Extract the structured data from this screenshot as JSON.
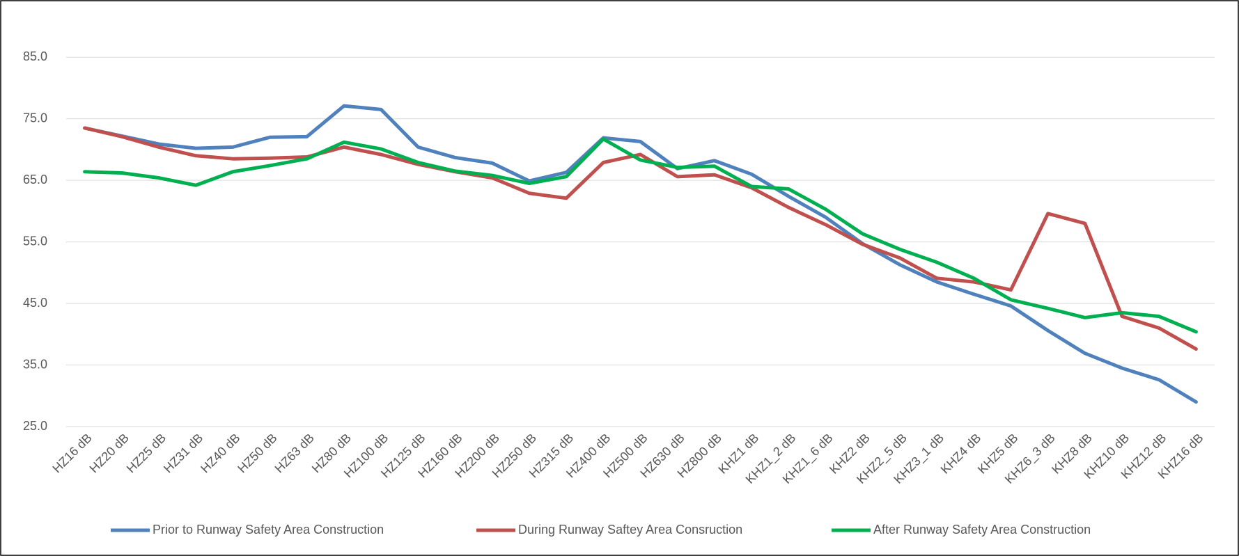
{
  "chart_data": {
    "type": "line",
    "categories": [
      "HZ16 dB",
      "HZ20 dB",
      "HZ25 dB",
      "HZ31 dB",
      "HZ40 dB",
      "HZ50 dB",
      "HZ63 dB",
      "HZ80 dB",
      "HZ100 dB",
      "HZ125 dB",
      "HZ160 dB",
      "HZ200 dB",
      "HZ250 dB",
      "HZ315 dB",
      "HZ400 dB",
      "HZ500 dB",
      "HZ630 dB",
      "HZ800 dB",
      "KHZ1 dB",
      "KHZ1_2 dB",
      "KHZ1_6 dB",
      "KHZ2 dB",
      "KHZ2_5 dB",
      "KHZ3_1 dB",
      "KHZ4 dB",
      "KHZ5 dB",
      "KHZ6_3 dB",
      "KHZ8 dB",
      "KHZ10 dB",
      "KHZ12 dB",
      "KHZ16 dB"
    ],
    "series": [
      {
        "name": "Prior to Runway Safety Area Construction",
        "color": "#4f81bd",
        "values": [
          73.5,
          72.2,
          70.9,
          70.2,
          70.4,
          72.0,
          72.1,
          77.1,
          76.5,
          70.4,
          68.7,
          67.8,
          64.9,
          66.3,
          71.9,
          71.3,
          66.9,
          68.2,
          66.0,
          62.4,
          59.0,
          54.7,
          51.3,
          48.5,
          46.5,
          44.6,
          40.6,
          36.9,
          34.5,
          32.6,
          29.0
        ]
      },
      {
        "name": "During Runway Saftey Area Consruction",
        "color": "#c0504d",
        "values": [
          73.5,
          72.1,
          70.4,
          69.0,
          68.5,
          68.6,
          68.8,
          70.4,
          69.2,
          67.6,
          66.4,
          65.4,
          62.9,
          62.1,
          67.9,
          69.2,
          65.6,
          65.9,
          63.8,
          60.6,
          57.8,
          54.6,
          52.4,
          49.1,
          48.5,
          47.2,
          59.6,
          58.0,
          42.9,
          41.0,
          37.6
        ]
      },
      {
        "name": "After Runway Safety Area Construction",
        "color": "#00b050",
        "values": [
          66.4,
          66.2,
          65.4,
          64.2,
          66.4,
          67.4,
          68.5,
          71.2,
          70.1,
          67.9,
          66.5,
          65.8,
          64.5,
          65.6,
          71.7,
          68.3,
          67.1,
          67.3,
          64.0,
          63.6,
          60.3,
          56.3,
          53.8,
          51.7,
          49.1,
          45.6,
          44.2,
          42.7,
          43.5,
          42.9,
          40.4
        ]
      }
    ],
    "ylim": [
      25,
      90
    ],
    "yticks": [
      {
        "value": 25,
        "label": "25.0"
      },
      {
        "value": 35,
        "label": "35.0"
      },
      {
        "value": 45,
        "label": "45.0"
      },
      {
        "value": 55,
        "label": "55.0"
      },
      {
        "value": 65,
        "label": "65.0"
      },
      {
        "value": 75,
        "label": "75.0"
      },
      {
        "value": 85,
        "label": "85.0"
      }
    ],
    "grid": true,
    "legend": "bottom"
  }
}
